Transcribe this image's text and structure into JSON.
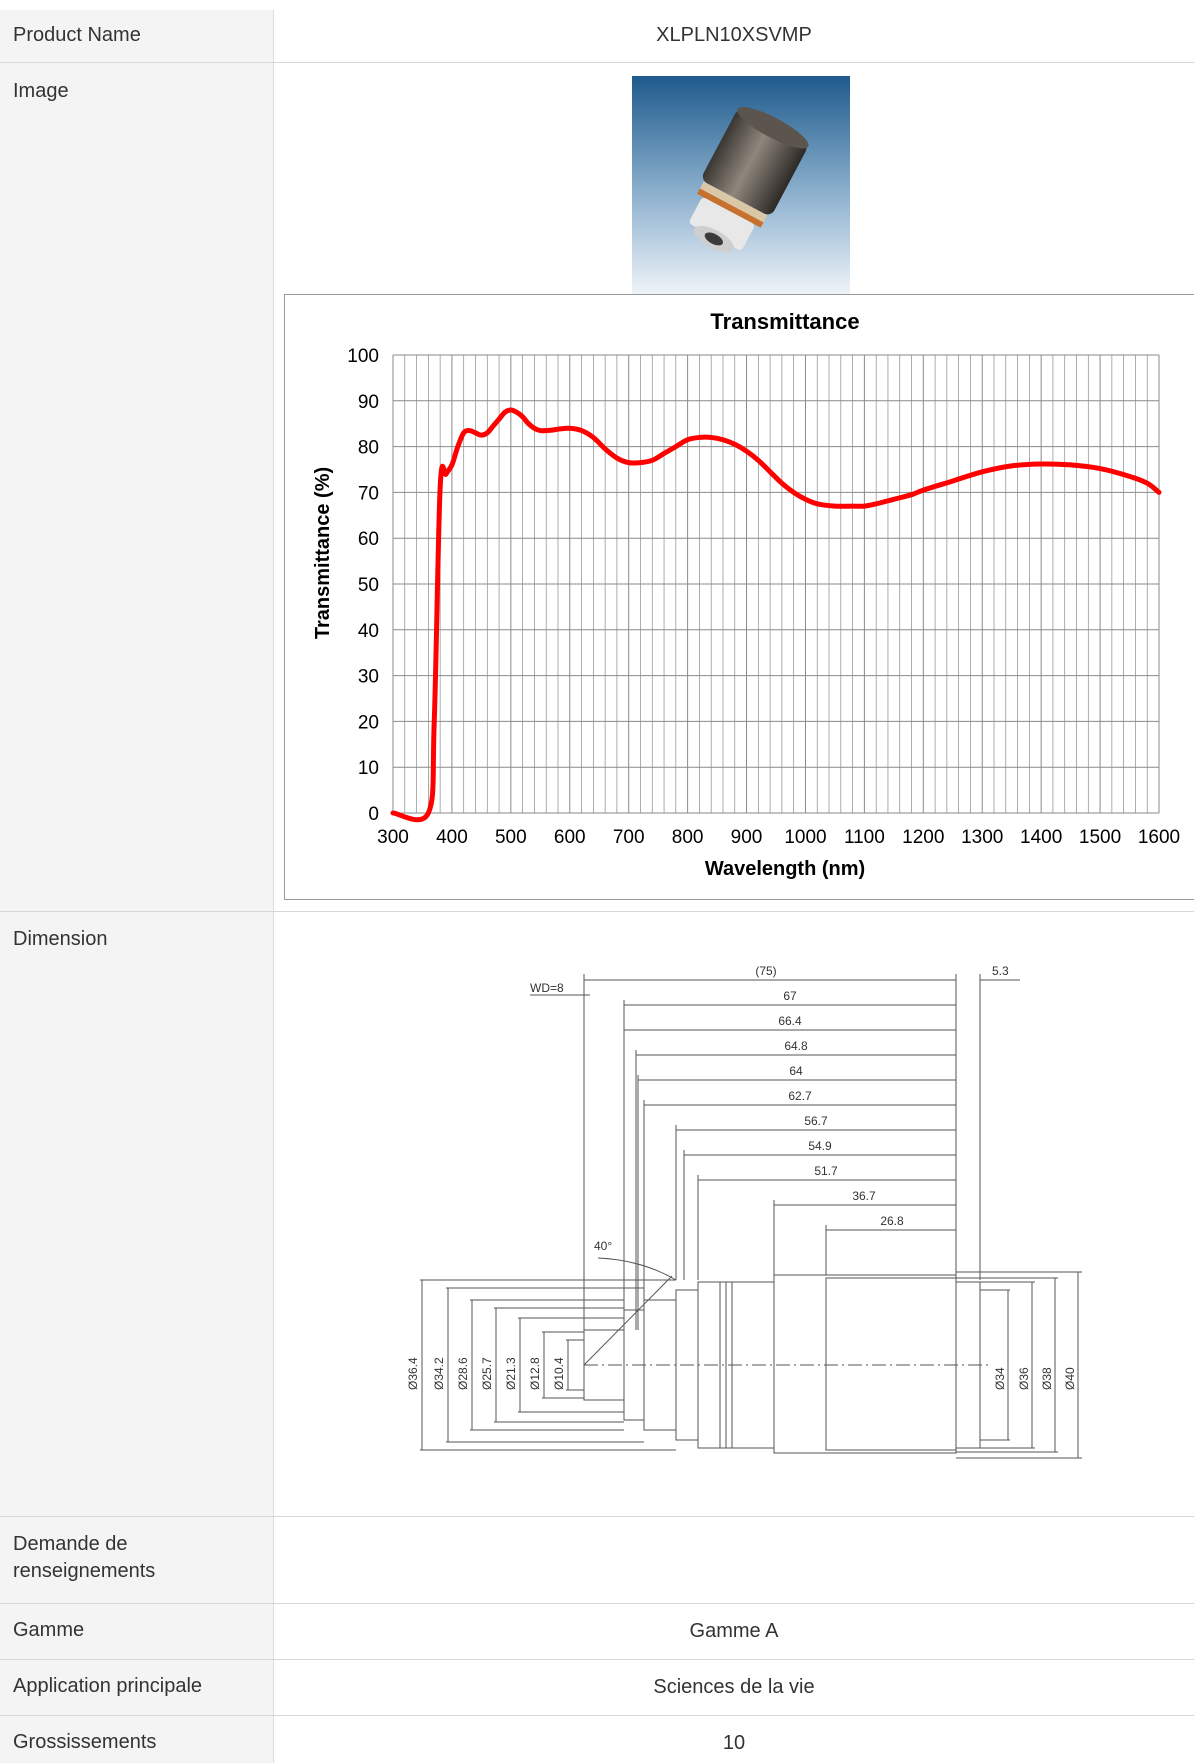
{
  "rows": [
    {
      "label": "Product Name",
      "value": "XLPLN10XSVMP"
    },
    {
      "label": "Image",
      "value": ""
    },
    {
      "label": "Dimension",
      "value": ""
    },
    {
      "label": "Demande de renseignements",
      "value": ""
    },
    {
      "label": "Gamme",
      "value": "Gamme A"
    },
    {
      "label": "Application principale",
      "value": "Sciences de la vie"
    },
    {
      "label": "Grossissements",
      "value": "10"
    }
  ],
  "photo": {
    "icon": "objective-lens-photo"
  },
  "chart_data": {
    "type": "line",
    "title": "Transmittance",
    "xlabel": "Wavelength (nm)",
    "ylabel": "Transmittance (%)",
    "xlim": [
      300,
      1600
    ],
    "ylim": [
      0,
      100
    ],
    "x_ticks": [
      "300",
      "400",
      "500",
      "600",
      "700",
      "800",
      "900",
      "1000",
      "1100",
      "1200",
      "1300",
      "1400",
      "1500",
      "1600"
    ],
    "y_ticks": [
      "0",
      "10",
      "20",
      "30",
      "40",
      "50",
      "60",
      "70",
      "80",
      "90",
      "100"
    ],
    "grid": true,
    "color": "#ff0000",
    "series": [
      {
        "x": [
          300,
          360,
          370,
          380,
          390,
          400,
          410,
          420,
          430,
          440,
          450,
          460,
          470,
          480,
          490,
          500,
          510,
          520,
          530,
          540,
          550,
          560,
          570,
          580,
          600,
          620,
          640,
          660,
          680,
          700,
          720,
          740,
          760,
          780,
          800,
          820,
          840,
          860,
          880,
          900,
          920,
          940,
          960,
          980,
          1000,
          1020,
          1050,
          1080,
          1100,
          1120,
          1150,
          1180,
          1200,
          1250,
          1300,
          1350,
          1400,
          1450,
          1500,
          1550,
          1580,
          1600
        ],
        "y": [
          0,
          0,
          20,
          71,
          74,
          76,
          80,
          83,
          83.5,
          83,
          82.5,
          83,
          84.5,
          86,
          87.5,
          88,
          87.5,
          86.5,
          85,
          84,
          83.5,
          83.5,
          83.6,
          83.8,
          84,
          83.5,
          82,
          79.5,
          77.5,
          76.5,
          76.5,
          77,
          78.5,
          80,
          81.5,
          82,
          82,
          81.5,
          80.5,
          79,
          77,
          74.5,
          72,
          70,
          68.5,
          67.5,
          67,
          67,
          67,
          67.5,
          68.5,
          69.5,
          70.5,
          72.5,
          74.5,
          75.8,
          76.2,
          76,
          75.2,
          73.5,
          72,
          70
        ]
      }
    ]
  },
  "dimensions": {
    "lengths": [
      "(75)",
      "67",
      "66.4",
      "64.8",
      "64",
      "62.7",
      "56.7",
      "54.9",
      "51.7",
      "36.7",
      "26.8"
    ],
    "wd": "WD=8",
    "right_offset": "5.3",
    "angle": "40°",
    "left_diameters": [
      "Ø36.4",
      "Ø34.2",
      "Ø28.6",
      "Ø25.7",
      "Ø21.3",
      "Ø12.8",
      "Ø10.4"
    ],
    "right_diameters": [
      "Ø34",
      "Ø36",
      "Ø38",
      "Ø40"
    ]
  }
}
